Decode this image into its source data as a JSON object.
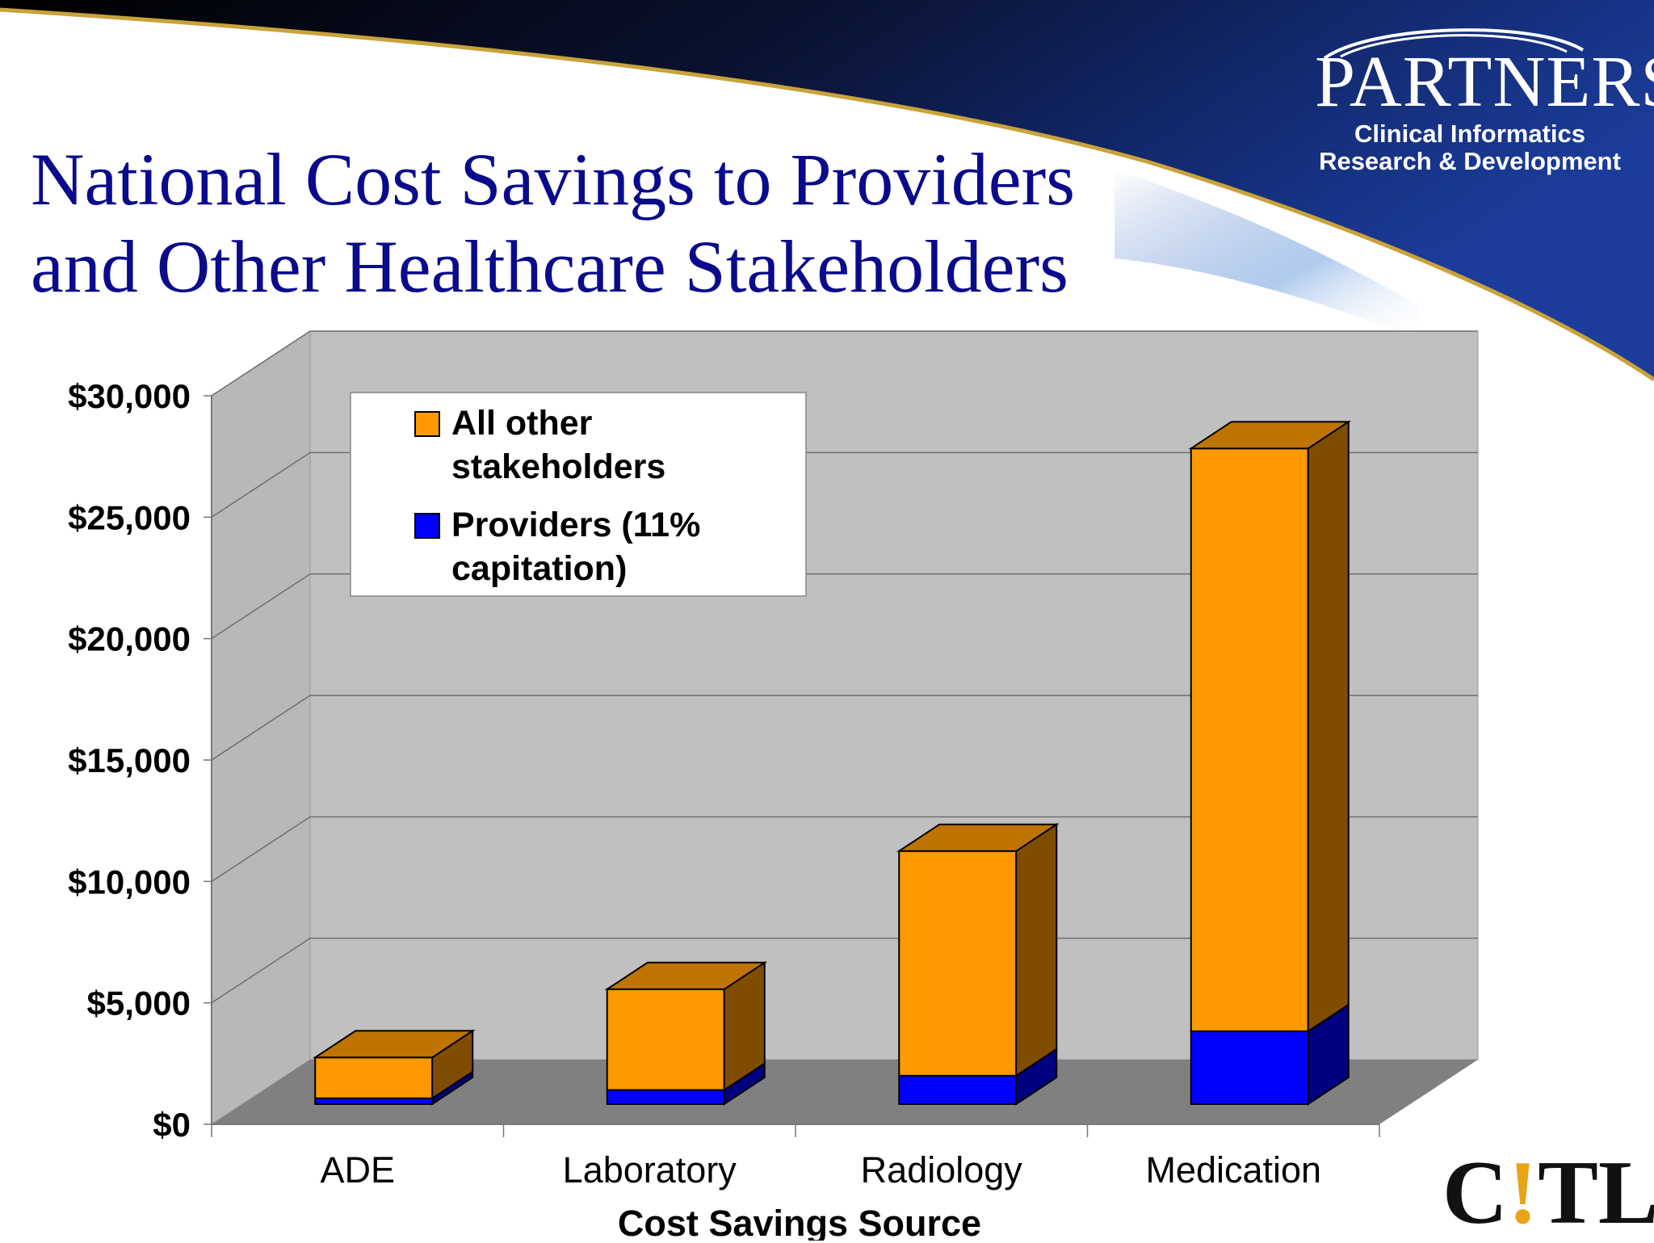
{
  "slide": {
    "title_line1": "National Cost Savings to Providers",
    "title_line2": "and Other Healthcare Stakeholders",
    "logo_name": "PARTNERS",
    "logo_sub_line1": "Clinical Informatics",
    "logo_sub_line2": "Research & Development",
    "footer_logo_c": "C",
    "footer_logo_bang": "!",
    "footer_logo_tl": "TL"
  },
  "colors": {
    "title": "#0a0a8c",
    "orange": "#ff9900",
    "blue": "#0000ff",
    "wall": "#c0c0c0",
    "floor": "#808080"
  },
  "chart_data": {
    "type": "bar",
    "stacked": true,
    "style": "3d",
    "categories": [
      "ADE",
      "Laboratory",
      "Radiology",
      "Medication"
    ],
    "series": [
      {
        "name": "Providers (11% capitation)",
        "color": "#0000ff",
        "values": [
          240,
          580,
          1170,
          3000
        ]
      },
      {
        "name": "All other stakeholders",
        "color": "#ff9900",
        "values": [
          1680,
          4150,
          9250,
          24000
        ]
      }
    ],
    "xlabel": "Cost Savings Source",
    "ylabel": "",
    "ylim": [
      0,
      30000
    ],
    "yticks": [
      0,
      5000,
      10000,
      15000,
      20000,
      25000,
      30000
    ],
    "ytick_labels": [
      "$0",
      "$5,000",
      "$10,000",
      "$15,000",
      "$20,000",
      "$25,000",
      "$30,000"
    ],
    "legend": {
      "placement": "top-left",
      "entries": [
        {
          "lines": [
            "All other",
            "stakeholders"
          ],
          "color": "#ff9900"
        },
        {
          "lines": [
            "Providers (11%",
            "capitation)"
          ],
          "color": "#0000ff"
        }
      ]
    },
    "grid": true
  }
}
